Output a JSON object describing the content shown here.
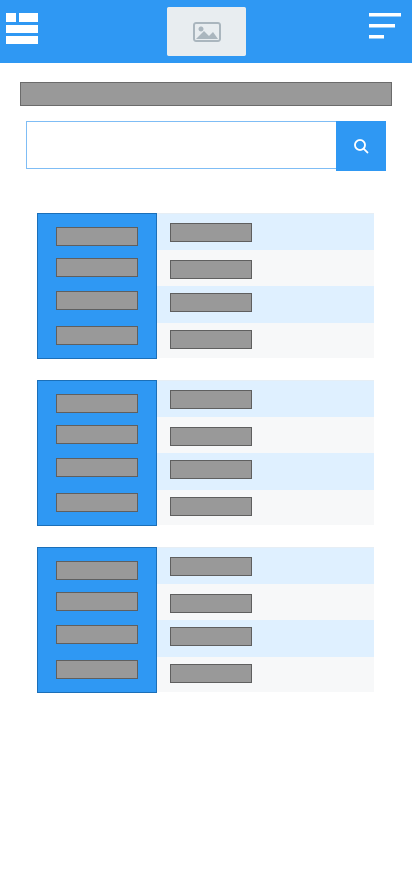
{
  "header": {
    "left_icon": "grid-list-icon",
    "logo_icon": "image-placeholder-icon",
    "right_icon": "hamburger-menu-icon",
    "colors": {
      "primary": "#2f98f3",
      "logo_bg": "#e8edf0",
      "placeholder": "#999999"
    }
  },
  "search": {
    "value": "",
    "placeholder": "",
    "button_icon": "search-icon"
  },
  "cards": [
    {
      "side_items": 4,
      "rows": 4
    },
    {
      "side_items": 4,
      "rows": 4
    },
    {
      "side_items": 4,
      "rows": 4
    }
  ]
}
